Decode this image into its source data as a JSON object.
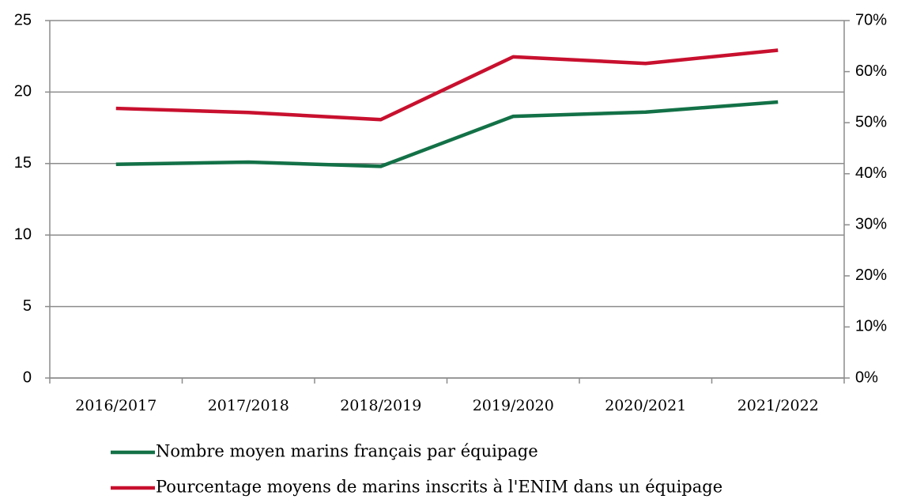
{
  "chart_data": {
    "type": "line",
    "categories": [
      "2016/2017",
      "2017/2018",
      "2018/2019",
      "2019/2020",
      "2020/2021",
      "2021/2022"
    ],
    "series": [
      {
        "name": "Nombre moyen marins français par équipage",
        "color": "#137147",
        "values": [
          14.95,
          15.1,
          14.8,
          18.3,
          18.6,
          19.3
        ]
      },
      {
        "name": "Pourcentage moyens de marins inscrits à l'ENIM dans un équipage",
        "color": "#c8102e",
        "axis": "y2",
        "values": [
          52.8,
          52.0,
          50.6,
          62.9,
          61.6,
          64.2
        ]
      }
    ],
    "ylim": [
      0,
      25
    ],
    "yticks": [
      0,
      5,
      10,
      15,
      20,
      25
    ],
    "y2lim": [
      0,
      70
    ],
    "y2ticks": [
      {
        "value": 0,
        "label": "0%"
      },
      {
        "value": 10,
        "label": "10%"
      },
      {
        "value": 20,
        "label": "20%"
      },
      {
        "value": 30,
        "label": "30%"
      },
      {
        "value": 40,
        "label": "40%"
      },
      {
        "value": 50,
        "label": "50%"
      },
      {
        "value": 60,
        "label": "60%"
      },
      {
        "value": 70,
        "label": "70%"
      }
    ],
    "grid": true,
    "legend": "bottom"
  }
}
